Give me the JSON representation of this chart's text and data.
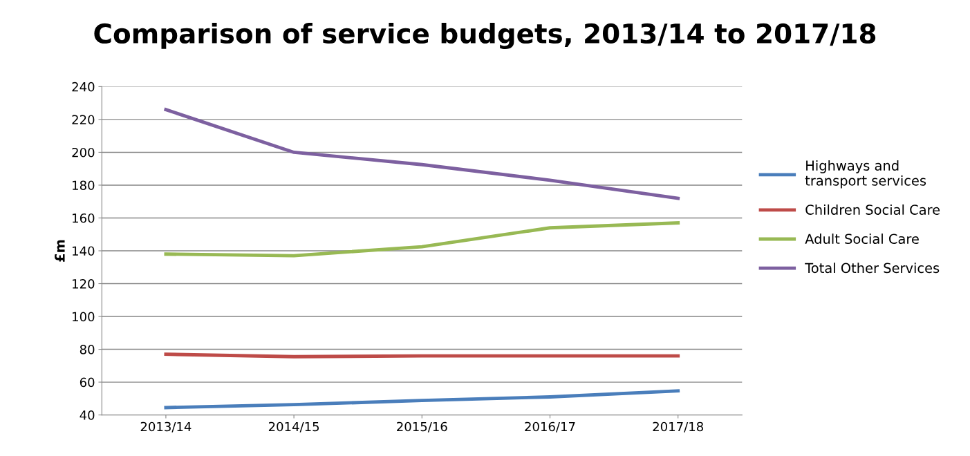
{
  "chart_data": {
    "type": "line",
    "title": "Comparison of service budgets, 2013/14 to 2017/18",
    "ylabel": "£m",
    "categories": [
      "2013/14",
      "2014/15",
      "2015/16",
      "2016/17",
      "2017/18"
    ],
    "series": [
      {
        "name": "Highways and transport services",
        "color": "#4a7ebb",
        "values": [
          44.5,
          46.3,
          48.8,
          51,
          54.7
        ]
      },
      {
        "name": "Children Social Care",
        "color": "#be4b48",
        "values": [
          77,
          75.5,
          76,
          76,
          76
        ]
      },
      {
        "name": "Adult Social Care",
        "color": "#98b954",
        "values": [
          138,
          137,
          142.5,
          154,
          157
        ]
      },
      {
        "name": "Total Other Services",
        "color": "#7d60a0",
        "values": [
          226,
          200,
          192.5,
          183,
          172
        ]
      }
    ],
    "ylim": [
      40,
      240
    ],
    "yticks": [
      40,
      60,
      80,
      100,
      120,
      140,
      160,
      180,
      200,
      220,
      240
    ],
    "grid": "y",
    "legend": "right",
    "marker": "none",
    "line_style": "solid"
  }
}
